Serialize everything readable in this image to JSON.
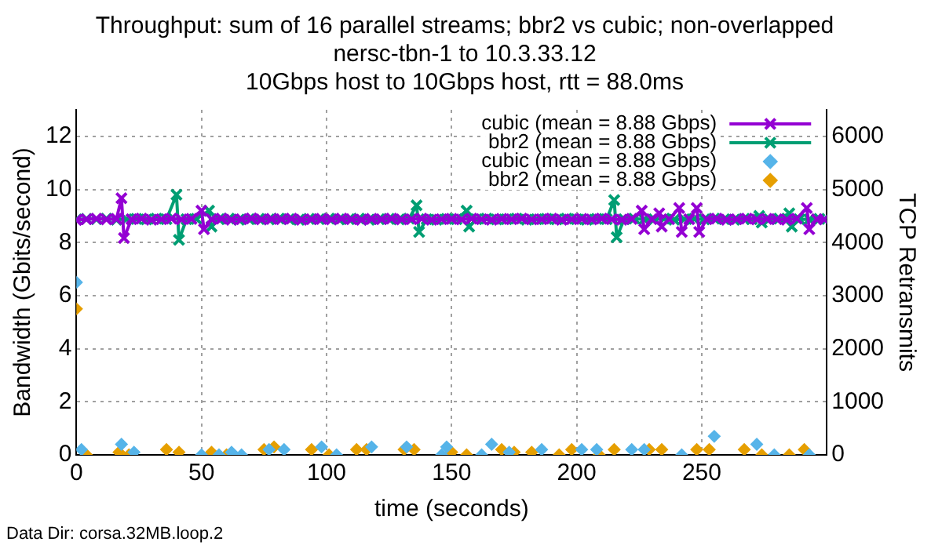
{
  "chart_data": {
    "type": "line",
    "title": "Throughput: sum of 16 parallel streams; bbr2 vs cubic; non-overlapped",
    "subtitle": "nersc-tbn-1 to 10.3.33.12\n10Gbps host to 10Gbps host, rtt = 88.0ms",
    "xlabel": "time (seconds)",
    "ylabel": "Bandwidth (Gbits/second)",
    "y2label": "TCP Retransmits",
    "annotations": [
      "Data Dir: corsa.32MB.loop.2"
    ],
    "xlim": [
      0,
      300
    ],
    "xticks": [
      0,
      50,
      100,
      150,
      200,
      250
    ],
    "ylim": [
      0,
      13
    ],
    "yticks": [
      0,
      2,
      4,
      6,
      8,
      10,
      12
    ],
    "y2lim": [
      0,
      6500
    ],
    "y2ticks": [
      0,
      1000,
      2000,
      3000,
      4000,
      5000,
      6000
    ],
    "grid": true,
    "legend": "top right",
    "series": [
      {
        "name": "cubic (mean = 8.88 Gbps)",
        "marker": "cross",
        "color": "#9400d3",
        "x": [
          0,
          4,
          8,
          12,
          16,
          18,
          19,
          22,
          26,
          30,
          34,
          38,
          42,
          46,
          50,
          51,
          54,
          58,
          62,
          66,
          70,
          74,
          78,
          82,
          86,
          90,
          94,
          98,
          102,
          106,
          110,
          114,
          118,
          122,
          126,
          130,
          134,
          138,
          142,
          146,
          150,
          154,
          158,
          162,
          166,
          170,
          174,
          178,
          182,
          186,
          190,
          194,
          198,
          202,
          206,
          210,
          214,
          218,
          222,
          226,
          227,
          230,
          233,
          234,
          237,
          241,
          242,
          245,
          248,
          249,
          252,
          256,
          260,
          264,
          268,
          272,
          276,
          280,
          284,
          288,
          292,
          293,
          296,
          299
        ],
        "values": [
          8.85,
          8.88,
          8.9,
          8.87,
          8.89,
          9.67,
          8.17,
          8.88,
          8.9,
          8.86,
          8.88,
          8.9,
          8.87,
          8.89,
          9.2,
          8.5,
          8.88,
          8.9,
          8.86,
          8.88,
          8.91,
          8.87,
          8.89,
          8.88,
          8.9,
          8.86,
          8.88,
          8.89,
          8.87,
          8.9,
          8.88,
          8.86,
          8.89,
          8.88,
          8.9,
          8.87,
          8.88,
          8.9,
          8.86,
          8.88,
          8.89,
          8.87,
          8.9,
          8.88,
          8.86,
          8.89,
          8.88,
          8.9,
          8.87,
          8.88,
          8.9,
          8.86,
          8.88,
          8.89,
          8.87,
          8.9,
          8.88,
          8.86,
          8.89,
          9.2,
          8.5,
          8.88,
          9.1,
          8.6,
          8.88,
          9.3,
          8.4,
          8.88,
          9.3,
          8.4,
          8.88,
          8.9,
          8.86,
          8.88,
          8.9,
          8.87,
          8.89,
          8.88,
          8.86,
          8.9,
          9.3,
          8.5,
          8.88,
          8.87
        ]
      },
      {
        "name": "bbr2 (mean = 8.88 Gbps)",
        "marker": "cross",
        "color": "#009e73",
        "x": [
          0,
          4,
          8,
          12,
          16,
          20,
          24,
          28,
          32,
          36,
          40,
          41,
          44,
          48,
          53,
          54,
          57,
          61,
          65,
          69,
          73,
          77,
          81,
          85,
          89,
          93,
          97,
          101,
          105,
          109,
          113,
          117,
          121,
          125,
          129,
          133,
          136,
          137,
          140,
          144,
          148,
          152,
          156,
          157,
          160,
          164,
          168,
          172,
          176,
          180,
          184,
          188,
          192,
          196,
          200,
          204,
          208,
          212,
          215,
          216,
          219,
          223,
          227,
          231,
          235,
          239,
          243,
          247,
          251,
          255,
          259,
          263,
          267,
          270,
          273,
          274,
          277,
          281,
          285,
          286,
          289,
          293,
          297,
          299
        ],
        "values": [
          8.87,
          8.89,
          8.88,
          8.9,
          8.86,
          8.88,
          8.89,
          8.87,
          8.9,
          8.88,
          9.8,
          8.1,
          8.88,
          8.89,
          9.2,
          8.6,
          8.88,
          8.9,
          8.86,
          8.88,
          8.89,
          8.87,
          8.9,
          8.88,
          8.86,
          8.89,
          8.88,
          8.9,
          8.87,
          8.88,
          8.9,
          8.86,
          8.88,
          8.89,
          8.87,
          8.9,
          9.4,
          8.4,
          8.88,
          8.86,
          8.89,
          8.88,
          9.2,
          8.6,
          8.88,
          8.9,
          8.87,
          8.88,
          8.9,
          8.86,
          8.88,
          8.89,
          8.87,
          8.9,
          8.88,
          8.86,
          8.89,
          8.88,
          9.6,
          8.2,
          8.88,
          8.9,
          8.87,
          8.88,
          8.9,
          8.86,
          8.88,
          8.89,
          8.87,
          8.9,
          8.88,
          8.86,
          8.89,
          8.88,
          9.0,
          8.75,
          8.88,
          8.9,
          9.1,
          8.6,
          8.88,
          8.87,
          8.89,
          8.88
        ]
      },
      {
        "name": "cubic (mean = 8.88 Gbps)",
        "type": "scatter",
        "axis": "y2",
        "marker": "diamond",
        "color": "#56b4e9",
        "x": [
          0,
          2,
          18,
          23,
          50,
          57,
          62,
          66,
          77,
          83,
          98,
          104,
          118,
          132,
          146,
          148,
          162,
          166,
          173,
          186,
          202,
          208,
          222,
          227,
          242,
          255,
          272,
          279,
          293
        ],
        "values": [
          3250,
          100,
          200,
          50,
          0,
          0,
          50,
          0,
          100,
          100,
          150,
          0,
          150,
          150,
          0,
          150,
          0,
          200,
          50,
          100,
          100,
          100,
          100,
          100,
          0,
          350,
          200,
          0,
          0
        ]
      },
      {
        "name": "bbr2 (mean = 8.88 Gbps)",
        "type": "scatter",
        "axis": "y2",
        "marker": "diamond",
        "color": "#e69f00",
        "x": [
          0,
          4,
          17,
          21,
          36,
          41,
          54,
          60,
          75,
          79,
          94,
          101,
          112,
          116,
          131,
          135,
          150,
          156,
          170,
          175,
          182,
          193,
          198,
          209,
          215,
          229,
          234,
          248,
          253,
          267,
          274,
          285,
          291
        ],
        "values": [
          2750,
          0,
          50,
          0,
          100,
          50,
          50,
          0,
          100,
          150,
          100,
          0,
          100,
          100,
          100,
          100,
          50,
          0,
          100,
          50,
          50,
          0,
          100,
          0,
          100,
          100,
          100,
          100,
          100,
          100,
          0,
          0,
          100
        ]
      }
    ]
  }
}
